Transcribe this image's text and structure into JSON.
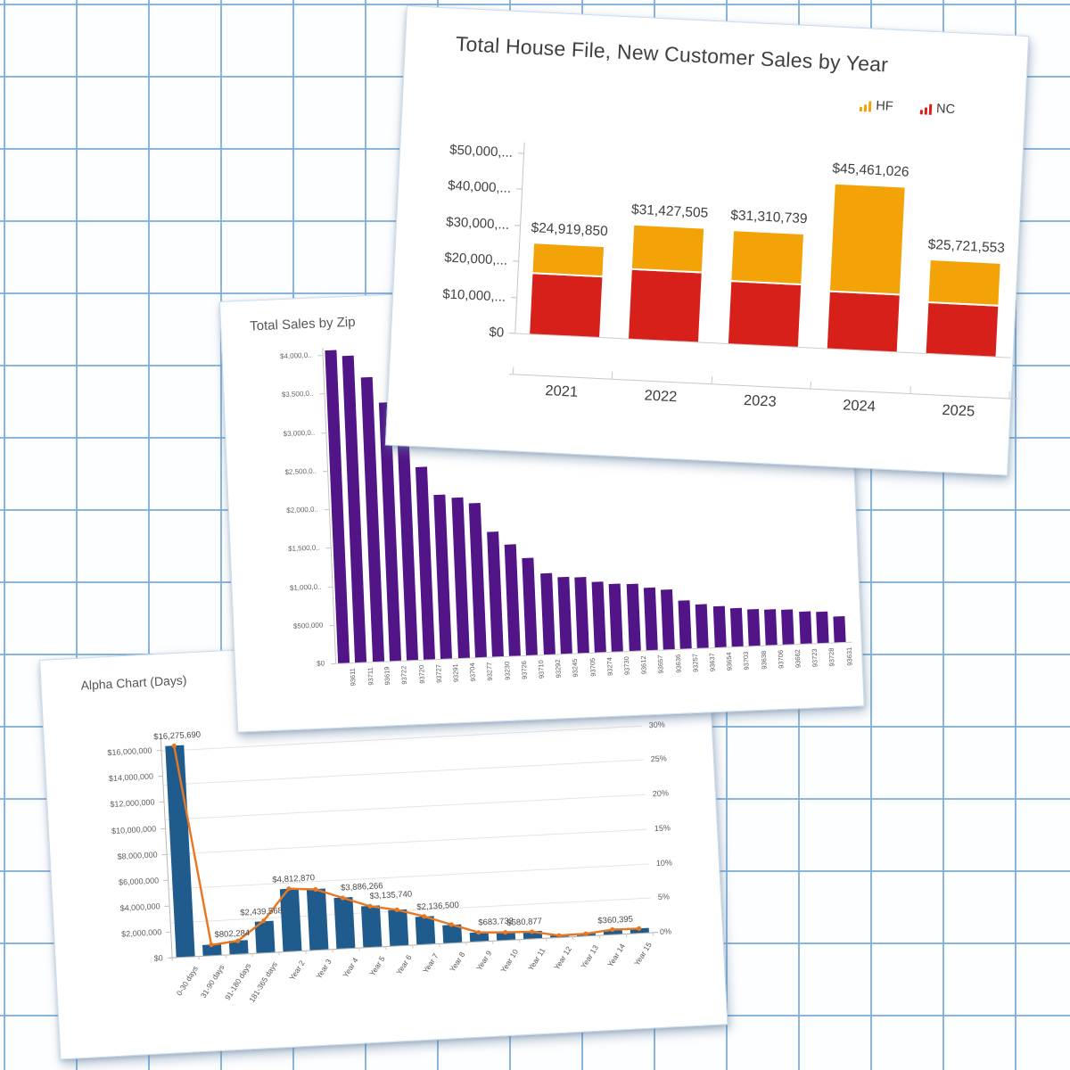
{
  "page": {
    "background_grid_color": "#7daeda",
    "card_background": "#ffffff"
  },
  "house_file_card": {
    "legend": [
      {
        "label": "HF",
        "color": "#F3A208",
        "icon": "mini-bar-chart-icon"
      },
      {
        "label": "NC",
        "color": "#D8201A",
        "icon": "mini-bar-chart-icon"
      }
    ]
  },
  "chart_data": [
    {
      "type": "bar",
      "subtype": "stacked-column",
      "title": "Total House File, New Customer Sales by Year",
      "categories": [
        "2021",
        "2022",
        "2023",
        "2024",
        "2025"
      ],
      "series": [
        {
          "name": "NC",
          "color": "#D8201A",
          "values": [
            16500000,
            19000000,
            17000000,
            15500000,
            13900000
          ]
        },
        {
          "name": "HF",
          "color": "#F3A208",
          "values": [
            8419850,
            12427505,
            14310739,
            29961026,
            11821553
          ]
        }
      ],
      "totals": [
        24919850,
        31427505,
        31310739,
        45461026,
        25721553
      ],
      "total_labels": [
        "$24,919,850",
        "$31,427,505",
        "$31,310,739",
        "$45,461,026",
        "$25,721,553"
      ],
      "y_ticks": [
        "$50,000,...",
        "$40,000,...",
        "$30,000,...",
        "$20,000,...",
        "$10,000,...",
        "$0"
      ],
      "ylim": [
        0,
        50000000
      ],
      "grid": false,
      "legend_position": "top-right"
    },
    {
      "type": "bar",
      "subtype": "column",
      "title": "Total Sales by Zip",
      "categories": [
        "93611",
        "93711",
        "93619",
        "93722",
        "93720",
        "93727",
        "93291",
        "93704",
        "93277",
        "93230",
        "93726",
        "93710",
        "93292",
        "93245",
        "93705",
        "93274",
        "93730",
        "93612",
        "93657",
        "93636",
        "93257",
        "93637",
        "93654",
        "93703",
        "93638",
        "93706",
        "93662",
        "93723",
        "93728",
        "93631"
      ],
      "values": [
        4060000,
        3980000,
        3690000,
        3350000,
        3330000,
        2500000,
        2130000,
        2080000,
        2000000,
        1620000,
        1450000,
        1260000,
        1050000,
        1000000,
        980000,
        910000,
        880000,
        870000,
        810000,
        770000,
        630000,
        570000,
        530000,
        500000,
        470000,
        460000,
        450000,
        420000,
        400000,
        340000
      ],
      "bar_color": "#511587",
      "y_ticks": [
        "$4,000,0..",
        "$3,500,0..",
        "$3,000,0..",
        "$2,500,0..",
        "$2,000,0..",
        "$1,500,0..",
        "$1,000,0..",
        "$500,000",
        "$0"
      ],
      "ylim": [
        0,
        4000000
      ],
      "grid": false
    },
    {
      "type": "bar",
      "subtype": "column-with-percent-line",
      "title": "Alpha Chart (Days)",
      "categories": [
        "0-30 days",
        "31-90 days",
        "91-180 days",
        "181-365 days",
        "Year 2",
        "Year 3",
        "Year 4",
        "Year 5",
        "Year 6",
        "Year 7",
        "Year 8",
        "Year 9",
        "Year 10",
        "Year 11",
        "Year 12",
        "Year 13",
        "Year 14",
        "Year 15"
      ],
      "bar_values": [
        16275690,
        802284,
        1000000,
        2439568,
        4812870,
        4650000,
        3886266,
        3135740,
        2750000,
        2136500,
        1400000,
        683732,
        580877,
        520000,
        120000,
        150000,
        360395,
        330000
      ],
      "line_pct": [
        30.6,
        1.5,
        1.9,
        4.6,
        9.0,
        8.7,
        7.3,
        5.9,
        5.2,
        4.0,
        2.6,
        1.3,
        1.1,
        1.0,
        0.2,
        0.3,
        0.7,
        0.6
      ],
      "point_labels": [
        {
          "i": 0,
          "text": "$16,275,690"
        },
        {
          "i": 1,
          "text": "$802,284"
        },
        {
          "i": 3,
          "text": "$2,439,568"
        },
        {
          "i": 4,
          "text": "$4,812,870"
        },
        {
          "i": 6,
          "text": "$3,886,266"
        },
        {
          "i": 7,
          "text": "$3,135,740"
        },
        {
          "i": 9,
          "text": "$2,136,500"
        },
        {
          "i": 11,
          "text": "$683,732"
        },
        {
          "i": 12,
          "text": "$580,877"
        },
        {
          "i": 16,
          "text": "$360,395"
        }
      ],
      "bar_color": "#1F5C8D",
      "line_color": "#E87722",
      "y_ticks_left": [
        "$16,000,000",
        "$14,000,000",
        "$12,000,000",
        "$10,000,000",
        "$8,000,000",
        "$6,000,000",
        "$4,000,000",
        "$2,000,000",
        "$0"
      ],
      "y_ticks_right": [
        "30%",
        "25%",
        "20%",
        "15%",
        "10%",
        "5%",
        "0%"
      ],
      "ylim_left": [
        0,
        16500000
      ],
      "ylim_right": [
        0,
        31
      ],
      "grid": true,
      "legend_position": "none"
    }
  ]
}
